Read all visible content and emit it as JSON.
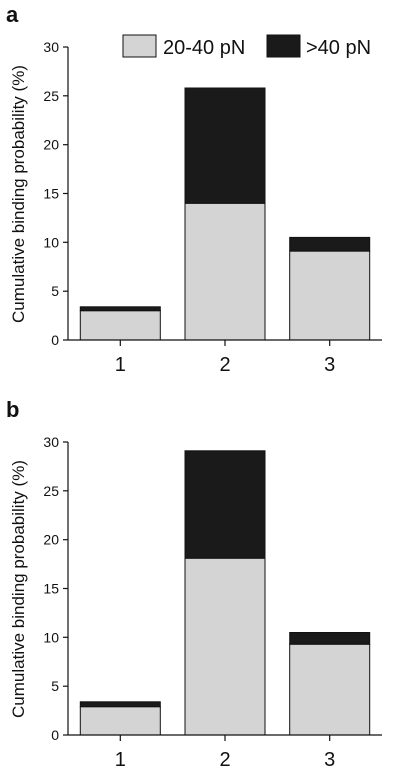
{
  "colors": {
    "low": "#d4d4d4",
    "high": "#1a1a1a",
    "axis": "#111111"
  },
  "legend": [
    {
      "label": "20-40 pN",
      "color": "#d4d4d4"
    },
    {
      "label": ">40 pN",
      "color": "#1a1a1a"
    }
  ],
  "chart_data": [
    {
      "type": "bar",
      "panel_label": "a",
      "categories": [
        "1",
        "2",
        "3"
      ],
      "series": [
        {
          "name": "20-40 pN",
          "values": [
            3.0,
            14.0,
            9.1
          ]
        },
        {
          "name": ">40 pN",
          "values": [
            0.4,
            11.8,
            1.4
          ]
        }
      ],
      "ylabel": "Cumulative binding probability (%)",
      "ylim": [
        0,
        30
      ],
      "yticks": [
        "0",
        "5",
        "10",
        "15",
        "20",
        "25",
        "30"
      ],
      "stacked": true,
      "legend_position": "top-right"
    },
    {
      "type": "bar",
      "panel_label": "b",
      "categories": [
        "1",
        "2",
        "3"
      ],
      "series": [
        {
          "name": "20-40 pN",
          "values": [
            2.9,
            18.1,
            9.3
          ]
        },
        {
          "name": ">40 pN",
          "values": [
            0.5,
            11.0,
            1.2
          ]
        }
      ],
      "ylabel": "Cumulative binding probability (%)",
      "ylim": [
        0,
        30
      ],
      "yticks": [
        "0",
        "5",
        "10",
        "15",
        "20",
        "25",
        "30"
      ],
      "stacked": true
    }
  ]
}
